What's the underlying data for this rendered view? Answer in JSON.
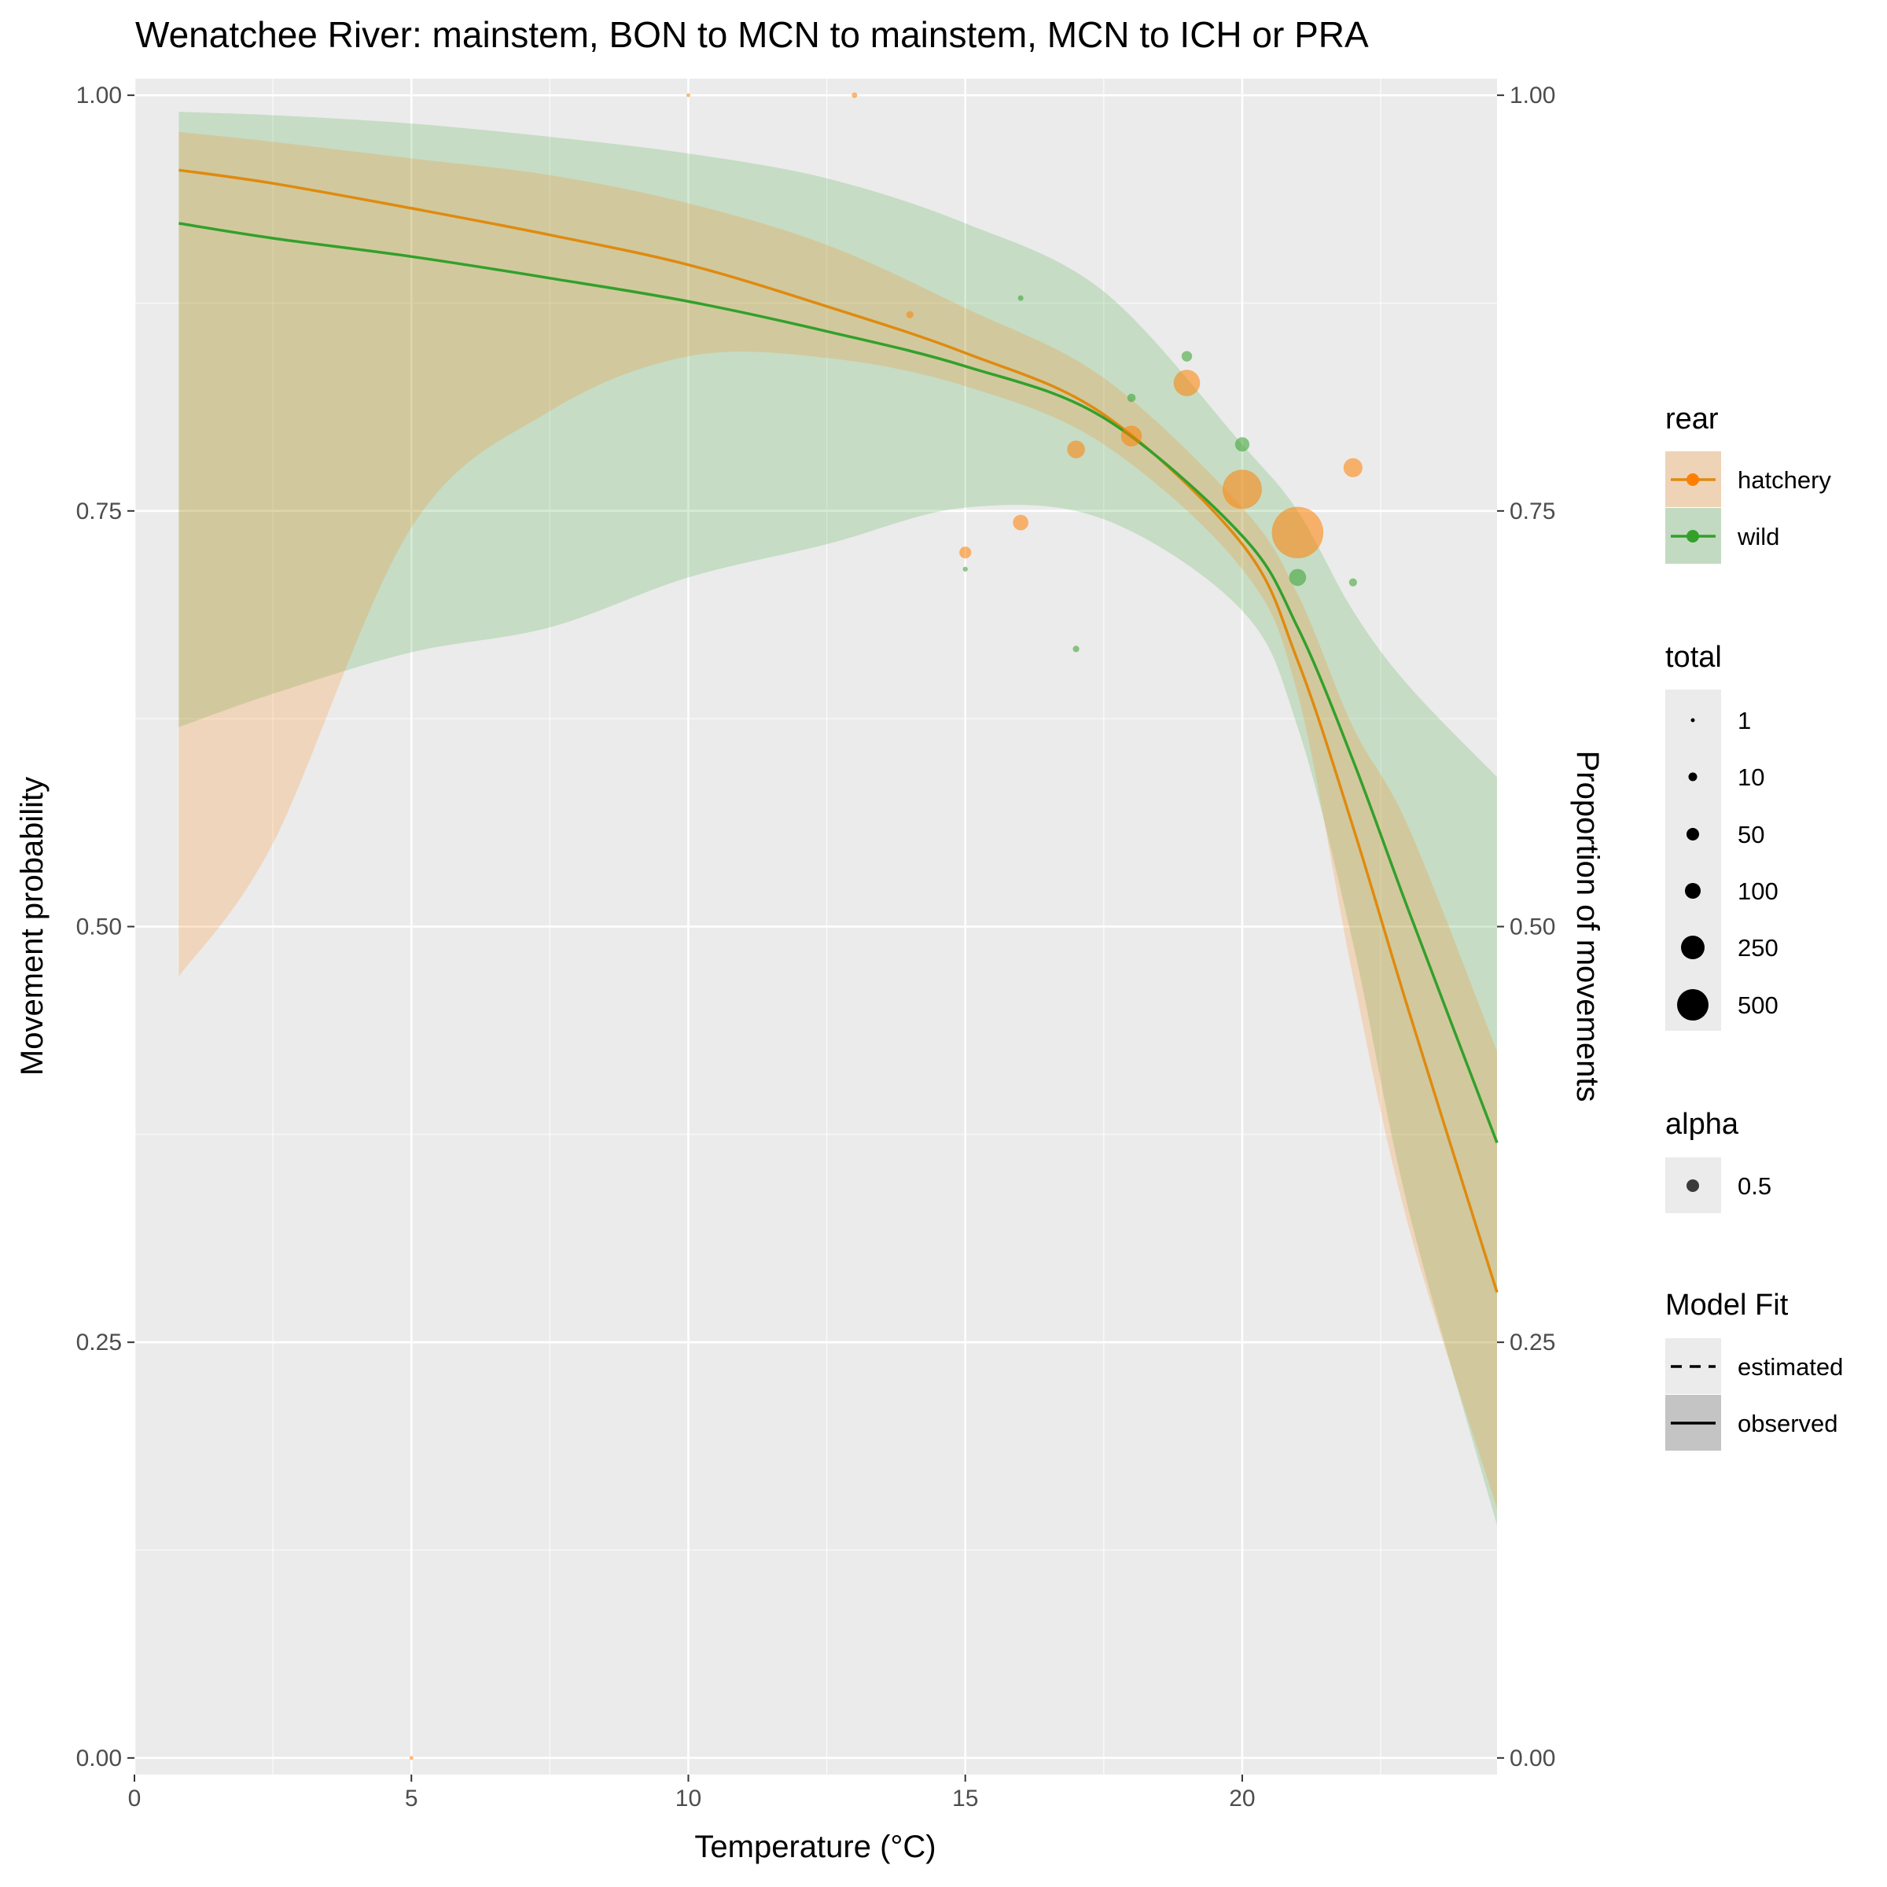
{
  "chart_data": {
    "type": "scatter",
    "title": "Wenatchee River: mainstem, BON to MCN to mainstem, MCN to ICH or PRA",
    "xlabel": "Temperature (°C)",
    "ylabel": "Movement probability",
    "ylabel_right": "Proportion of movements",
    "xlim": [
      0,
      24.6
    ],
    "ylim": [
      -0.01,
      1.01
    ],
    "x_ticks": [
      0,
      5,
      10,
      15,
      20
    ],
    "x_tick_labels": [
      "0",
      "5",
      "10",
      "15",
      "20"
    ],
    "y_ticks": [
      0,
      0.25,
      0.5,
      0.75,
      1
    ],
    "y_tick_labels": [
      "0.00",
      "0.25",
      "0.50",
      "0.75",
      "1.00"
    ],
    "grid": true,
    "legend_position": "right",
    "colors": {
      "hatchery": "#ff7f00",
      "hatchery_line": "#e08a10",
      "wild": "#33a02c",
      "panel": "#ebebeb",
      "grid": "#ffffff"
    },
    "curves": [
      {
        "name": "hatchery",
        "x": [
          0.8,
          2.5,
          5,
          7.5,
          10,
          12.5,
          15,
          17.5,
          20,
          21,
          22,
          23,
          24.6
        ],
        "fit": [
          0.955,
          0.947,
          0.932,
          0.916,
          0.898,
          0.873,
          0.845,
          0.808,
          0.73,
          0.66,
          0.56,
          0.45,
          0.28
        ],
        "lower": [
          0.47,
          0.55,
          0.74,
          0.81,
          0.843,
          0.842,
          0.825,
          0.79,
          0.715,
          0.64,
          0.47,
          0.32,
          0.15
        ],
        "upper": [
          0.978,
          0.972,
          0.962,
          0.952,
          0.935,
          0.91,
          0.872,
          0.83,
          0.752,
          0.7,
          0.62,
          0.56,
          0.425
        ]
      },
      {
        "name": "wild",
        "x": [
          0.8,
          2.5,
          5,
          7.5,
          10,
          12.5,
          15,
          17.5,
          20,
          21,
          22,
          23,
          24.6
        ],
        "fit": [
          0.923,
          0.914,
          0.903,
          0.89,
          0.876,
          0.858,
          0.837,
          0.806,
          0.735,
          0.68,
          0.6,
          0.51,
          0.37
        ],
        "lower": [
          0.62,
          0.64,
          0.665,
          0.68,
          0.71,
          0.73,
          0.752,
          0.745,
          0.69,
          0.62,
          0.49,
          0.33,
          0.14
        ],
        "upper": [
          0.99,
          0.988,
          0.983,
          0.975,
          0.965,
          0.95,
          0.923,
          0.882,
          0.79,
          0.75,
          0.69,
          0.645,
          0.59
        ]
      }
    ],
    "points": [
      {
        "rear": "hatchery",
        "x": 5,
        "y": 0.0,
        "total": 1
      },
      {
        "rear": "hatchery",
        "x": 10,
        "y": 1.0,
        "total": 1
      },
      {
        "rear": "hatchery",
        "x": 13,
        "y": 1.0,
        "total": 4
      },
      {
        "rear": "hatchery",
        "x": 14,
        "y": 0.868,
        "total": 8
      },
      {
        "rear": "hatchery",
        "x": 15,
        "y": 0.725,
        "total": 25
      },
      {
        "rear": "hatchery",
        "x": 16,
        "y": 0.743,
        "total": 45
      },
      {
        "rear": "hatchery",
        "x": 17,
        "y": 0.787,
        "total": 60
      },
      {
        "rear": "hatchery",
        "x": 18,
        "y": 0.795,
        "total": 85
      },
      {
        "rear": "hatchery",
        "x": 19,
        "y": 0.827,
        "total": 140
      },
      {
        "rear": "hatchery",
        "x": 20,
        "y": 0.763,
        "total": 320
      },
      {
        "rear": "hatchery",
        "x": 21,
        "y": 0.737,
        "total": 560
      },
      {
        "rear": "hatchery",
        "x": 22,
        "y": 0.776,
        "total": 70
      },
      {
        "rear": "wild",
        "x": 15,
        "y": 0.715,
        "total": 3
      },
      {
        "rear": "wild",
        "x": 16,
        "y": 0.878,
        "total": 4
      },
      {
        "rear": "wild",
        "x": 17,
        "y": 0.667,
        "total": 6
      },
      {
        "rear": "wild",
        "x": 18,
        "y": 0.818,
        "total": 11
      },
      {
        "rear": "wild",
        "x": 19,
        "y": 0.843,
        "total": 19
      },
      {
        "rear": "wild",
        "x": 20,
        "y": 0.79,
        "total": 38
      },
      {
        "rear": "wild",
        "x": 21,
        "y": 0.71,
        "total": 55
      },
      {
        "rear": "wild",
        "x": 22,
        "y": 0.707,
        "total": 10
      }
    ],
    "legend": {
      "rear": {
        "title": "rear",
        "items": [
          "hatchery",
          "wild"
        ]
      },
      "total": {
        "title": "total",
        "items": [
          "1",
          "10",
          "50",
          "100",
          "250",
          "500"
        ],
        "values": [
          1,
          10,
          50,
          100,
          250,
          500
        ]
      },
      "alpha": {
        "title": "alpha",
        "items": [
          "0.5"
        ]
      },
      "model_fit": {
        "title": "Model Fit",
        "items": [
          "estimated",
          "observed"
        ]
      }
    }
  }
}
